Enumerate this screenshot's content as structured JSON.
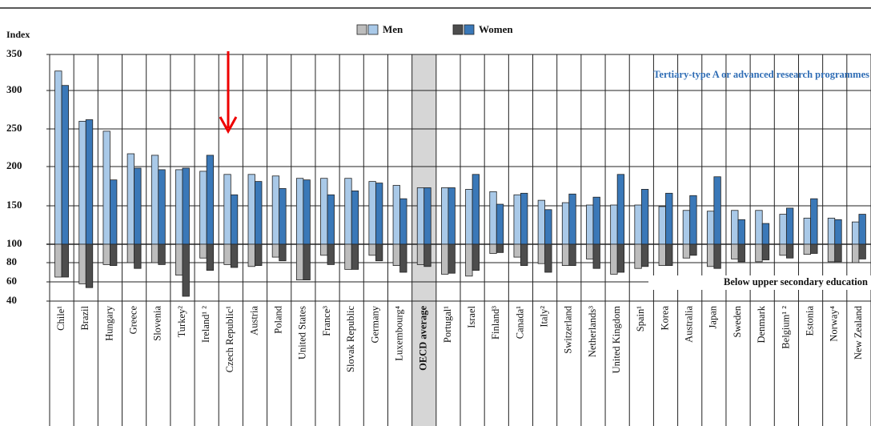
{
  "chart_data": {
    "type": "bar",
    "y_label": "Index",
    "categories": [
      "Chile¹",
      "Brazil",
      "Hungary",
      "Greece",
      "Slovenia",
      "Turkey²",
      "Ireland¹ ²",
      "Czech Republic¹",
      "Austria",
      "Poland",
      "United States",
      "France³",
      "Slovak Republic",
      "Germany",
      "Luxembourg⁴",
      "OECD average",
      "Portugal¹",
      "Israel",
      "Finland³",
      "Canada¹",
      "Italy²",
      "Switzerland",
      "Netherlands³",
      "United Kingdom",
      "Spain¹",
      "Korea",
      "Australia",
      "Japan",
      "Sweden",
      "Denmark",
      "Belgium¹ ²",
      "Estonia",
      "Norway⁴",
      "New Zealand"
    ],
    "highlight_index": 15,
    "series": [
      {
        "name": "Men",
        "colors": [
          "#bdbdbd",
          "#a9c9e8"
        ],
        "values": [
          327,
          260,
          247,
          217,
          215,
          196,
          194,
          190,
          190,
          188,
          185,
          185,
          185,
          181,
          176,
          173,
          173,
          171,
          168,
          164,
          157,
          154,
          151,
          151,
          151,
          149,
          144,
          143,
          144,
          144,
          139,
          134,
          134,
          129
        ],
        "below_values": [
          65,
          58,
          78,
          80,
          80,
          67,
          85,
          78,
          76,
          86,
          62,
          88,
          73,
          88,
          77,
          78,
          68,
          66,
          90,
          86,
          79,
          77,
          84,
          68,
          74,
          77,
          85,
          76,
          84,
          81,
          88,
          89,
          81,
          80
        ]
      },
      {
        "name": "Women",
        "colors": [
          "#4d4d4d",
          "#3a78b8"
        ],
        "values": [
          307,
          262,
          183,
          198,
          196,
          198,
          215,
          164,
          181,
          172,
          183,
          164,
          169,
          179,
          159,
          173,
          173,
          190,
          152,
          166,
          145,
          165,
          161,
          190,
          171,
          166,
          163,
          187,
          132,
          127,
          147,
          159,
          132,
          139
        ],
        "below_values": [
          65,
          54,
          77,
          74,
          78,
          45,
          72,
          75,
          77,
          82,
          62,
          78,
          73,
          82,
          70,
          76,
          69,
          72,
          91,
          77,
          70,
          77,
          74,
          70,
          76,
          77,
          88,
          74,
          81,
          83,
          85,
          90,
          81,
          84
        ]
      }
    ],
    "annotations": [
      "Tertiary-type A or advanced research programmes",
      "Below upper secondary education"
    ],
    "ylim": [
      40,
      350
    ],
    "yticks": [
      40,
      60,
      80,
      100,
      150,
      200,
      250,
      300,
      350
    ],
    "baseline": 100,
    "grid": true
  }
}
